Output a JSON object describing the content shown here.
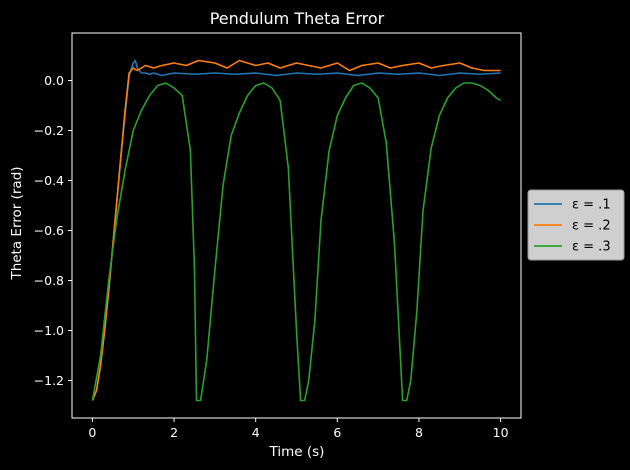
{
  "chart_data": {
    "type": "line",
    "title": "Pendulum Theta Error",
    "xlabel": "Time (s)",
    "ylabel": "Theta Error (rad)",
    "xlim": [
      -0.5,
      10.5
    ],
    "ylim": [
      -1.35,
      0.19
    ],
    "xticks": [
      0,
      2,
      4,
      6,
      8,
      10
    ],
    "xtick_labels": [
      "0",
      "2",
      "4",
      "6",
      "8",
      "10"
    ],
    "yticks": [
      0.0,
      -0.2,
      -0.4,
      -0.6,
      -0.8,
      -1.0,
      -1.2
    ],
    "ytick_labels": [
      "0.0",
      "−0.2",
      "−0.4",
      "−0.6",
      "−0.8",
      "−1.0",
      "−1.2"
    ],
    "grid": false,
    "legend_position": "outside right, middle",
    "background": "#000000",
    "series": [
      {
        "name": "ε = .1",
        "color": "#1f77b4",
        "x": [
          0,
          0.1,
          0.2,
          0.3,
          0.4,
          0.5,
          0.6,
          0.7,
          0.8,
          0.9,
          1.0,
          1.05,
          1.1,
          1.2,
          1.3,
          1.4,
          1.5,
          1.7,
          2.0,
          2.5,
          3.0,
          3.5,
          4.0,
          4.5,
          5.0,
          5.5,
          6.0,
          6.5,
          7.0,
          7.5,
          8.0,
          8.5,
          9.0,
          9.5,
          10.0
        ],
        "y": [
          -1.28,
          -1.24,
          -1.14,
          -1.0,
          -0.84,
          -0.66,
          -0.48,
          -0.3,
          -0.14,
          0.02,
          0.07,
          0.08,
          0.05,
          0.03,
          0.03,
          0.025,
          0.03,
          0.02,
          0.03,
          0.025,
          0.03,
          0.025,
          0.03,
          0.02,
          0.03,
          0.025,
          0.03,
          0.02,
          0.03,
          0.025,
          0.03,
          0.02,
          0.03,
          0.025,
          0.03
        ]
      },
      {
        "name": "ε = .2",
        "color": "#ff7f0e",
        "x": [
          0,
          0.1,
          0.2,
          0.3,
          0.4,
          0.5,
          0.6,
          0.7,
          0.8,
          0.9,
          1.0,
          1.1,
          1.2,
          1.3,
          1.5,
          1.7,
          2.0,
          2.3,
          2.6,
          3.0,
          3.3,
          3.6,
          4.0,
          4.3,
          4.6,
          5.0,
          5.3,
          5.6,
          6.0,
          6.3,
          6.6,
          7.0,
          7.3,
          7.6,
          8.0,
          8.3,
          8.6,
          9.0,
          9.3,
          9.6,
          10.0
        ],
        "y": [
          -1.28,
          -1.24,
          -1.14,
          -1.0,
          -0.84,
          -0.66,
          -0.48,
          -0.3,
          -0.12,
          0.03,
          0.05,
          0.04,
          0.05,
          0.06,
          0.05,
          0.06,
          0.07,
          0.06,
          0.08,
          0.07,
          0.05,
          0.08,
          0.06,
          0.07,
          0.05,
          0.07,
          0.06,
          0.05,
          0.07,
          0.04,
          0.06,
          0.07,
          0.05,
          0.06,
          0.07,
          0.05,
          0.06,
          0.07,
          0.05,
          0.04,
          0.04
        ]
      },
      {
        "name": "ε = .3",
        "color": "#2ca02c",
        "x": [
          0,
          0.2,
          0.4,
          0.6,
          0.8,
          1.0,
          1.2,
          1.4,
          1.6,
          1.8,
          2.0,
          2.2,
          2.4,
          2.5,
          2.55,
          2.65,
          2.8,
          3.0,
          3.2,
          3.4,
          3.6,
          3.8,
          4.0,
          4.2,
          4.4,
          4.6,
          4.8,
          5.0,
          5.1,
          5.2,
          5.3,
          5.45,
          5.6,
          5.8,
          6.0,
          6.2,
          6.4,
          6.6,
          6.8,
          7.0,
          7.2,
          7.4,
          7.6,
          7.7,
          7.8,
          7.95,
          8.1,
          8.3,
          8.5,
          8.7,
          8.9,
          9.1,
          9.3,
          9.5,
          9.7,
          9.9,
          10.0
        ],
        "y": [
          -1.28,
          -1.1,
          -0.8,
          -0.55,
          -0.36,
          -0.2,
          -0.12,
          -0.06,
          -0.02,
          -0.01,
          -0.03,
          -0.06,
          -0.28,
          -0.75,
          -1.28,
          -1.28,
          -1.12,
          -0.76,
          -0.42,
          -0.22,
          -0.13,
          -0.06,
          -0.02,
          -0.01,
          -0.03,
          -0.08,
          -0.35,
          -1.0,
          -1.28,
          -1.28,
          -1.2,
          -0.96,
          -0.56,
          -0.28,
          -0.14,
          -0.07,
          -0.02,
          -0.01,
          -0.03,
          -0.07,
          -0.25,
          -0.65,
          -1.28,
          -1.28,
          -1.2,
          -0.92,
          -0.52,
          -0.27,
          -0.14,
          -0.07,
          -0.03,
          -0.01,
          -0.01,
          -0.02,
          -0.04,
          -0.07,
          -0.08
        ]
      }
    ]
  }
}
